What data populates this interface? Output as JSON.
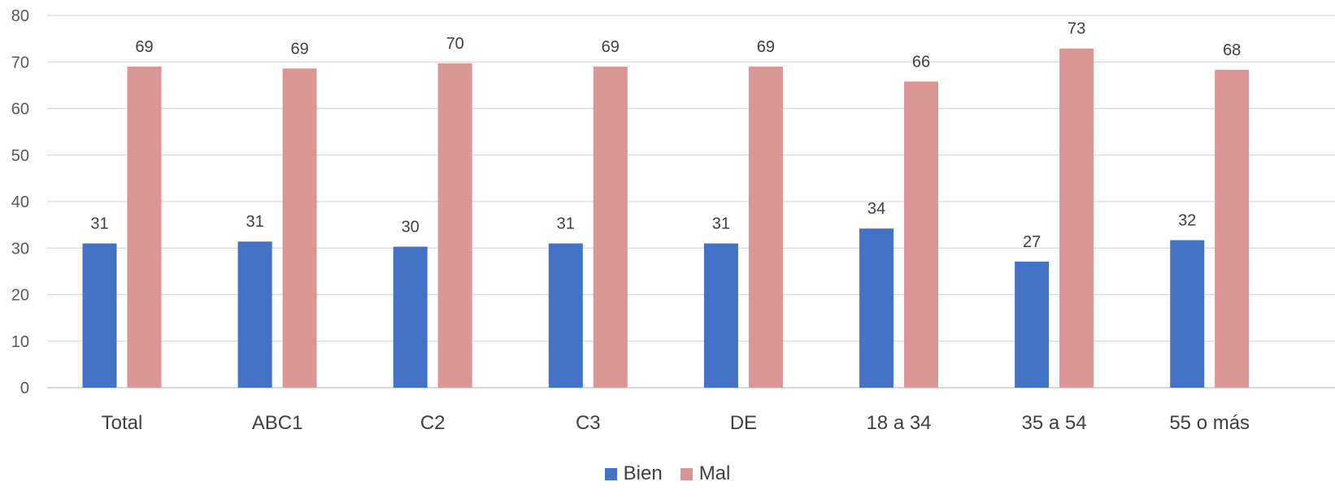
{
  "chart_data": {
    "type": "bar",
    "categories": [
      "Total",
      "ABC1",
      "C2",
      "C3",
      "DE",
      "18 a 34",
      "35 a 54",
      "55 o más"
    ],
    "series": [
      {
        "name": "Bien",
        "color": "#4472C4",
        "values": [
          31,
          31.4,
          30.3,
          31,
          31,
          34.2,
          27.1,
          31.7
        ],
        "labels": [
          "31",
          "31",
          "30",
          "31",
          "31",
          "34",
          "27",
          "32"
        ]
      },
      {
        "name": "Mal",
        "color": "#D99694",
        "values": [
          69,
          68.6,
          69.7,
          69,
          69,
          65.8,
          72.9,
          68.3
        ],
        "labels": [
          "69",
          "69",
          "70",
          "69",
          "69",
          "66",
          "73",
          "68"
        ]
      }
    ],
    "ylim": [
      0,
      80
    ],
    "yticks": [
      "0",
      "10",
      "20",
      "30",
      "40",
      "50",
      "60",
      "70",
      "80"
    ],
    "grid": true,
    "legend_position": "bottom"
  }
}
